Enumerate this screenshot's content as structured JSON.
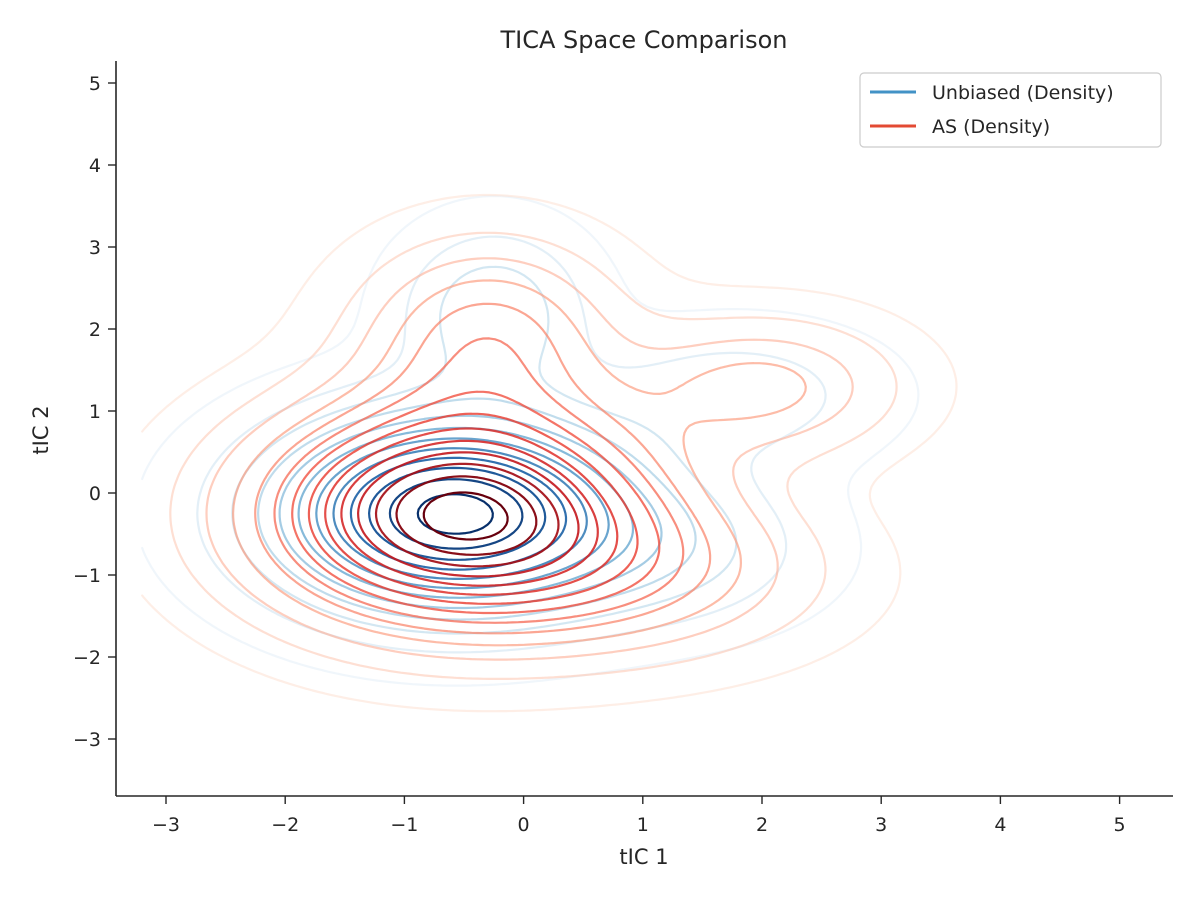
{
  "chart_data": {
    "type": "contour",
    "title": "TICA Space Comparison",
    "xlabel": "tIC 1",
    "ylabel": "tIC 2",
    "xlim": [
      -3.4,
      5.45
    ],
    "ylim": [
      -3.7,
      5.3
    ],
    "xticks": [
      -3,
      -2,
      -1,
      0,
      1,
      2,
      3,
      4,
      5
    ],
    "yticks": [
      -3,
      -2,
      -1,
      0,
      1,
      2,
      3,
      4,
      5
    ],
    "xtick_labels": [
      "−3",
      "−2",
      "−1",
      "0",
      "1",
      "2",
      "3",
      "4",
      "5"
    ],
    "ytick_labels": [
      "−3",
      "−2",
      "−1",
      "0",
      "1",
      "2",
      "3",
      "4",
      "5"
    ],
    "grid": false,
    "legend_position": "top-right",
    "series": [
      {
        "name": "Unbiased (Density)",
        "color": "#4292c6",
        "colormap": "Blues",
        "levels": 12,
        "components": [
          {
            "cx": -0.6,
            "cy": -0.25,
            "sx": 0.95,
            "sy": 0.75,
            "w": 1.0
          },
          {
            "cx": -0.25,
            "cy": 2.2,
            "sx": 0.5,
            "sy": 0.65,
            "w": 0.22
          },
          {
            "cx": 1.8,
            "cy": 1.2,
            "sx": 0.8,
            "sy": 0.55,
            "w": 0.12
          },
          {
            "cx": 1.2,
            "cy": -0.7,
            "sx": 0.8,
            "sy": 0.6,
            "w": 0.15
          }
        ]
      },
      {
        "name": "AS (Density)",
        "color": "#e34a33",
        "colormap": "Reds",
        "levels": 14,
        "components": [
          {
            "cx": -0.55,
            "cy": -0.25,
            "sx": 1.05,
            "sy": 0.85,
            "w": 1.0
          },
          {
            "cx": -0.3,
            "cy": 1.9,
            "sx": 0.7,
            "sy": 0.75,
            "w": 0.3
          },
          {
            "cx": 2.0,
            "cy": 1.3,
            "sx": 0.75,
            "sy": 0.55,
            "w": 0.22
          },
          {
            "cx": 1.0,
            "cy": -1.0,
            "sx": 1.0,
            "sy": 0.65,
            "w": 0.2
          }
        ]
      }
    ]
  }
}
